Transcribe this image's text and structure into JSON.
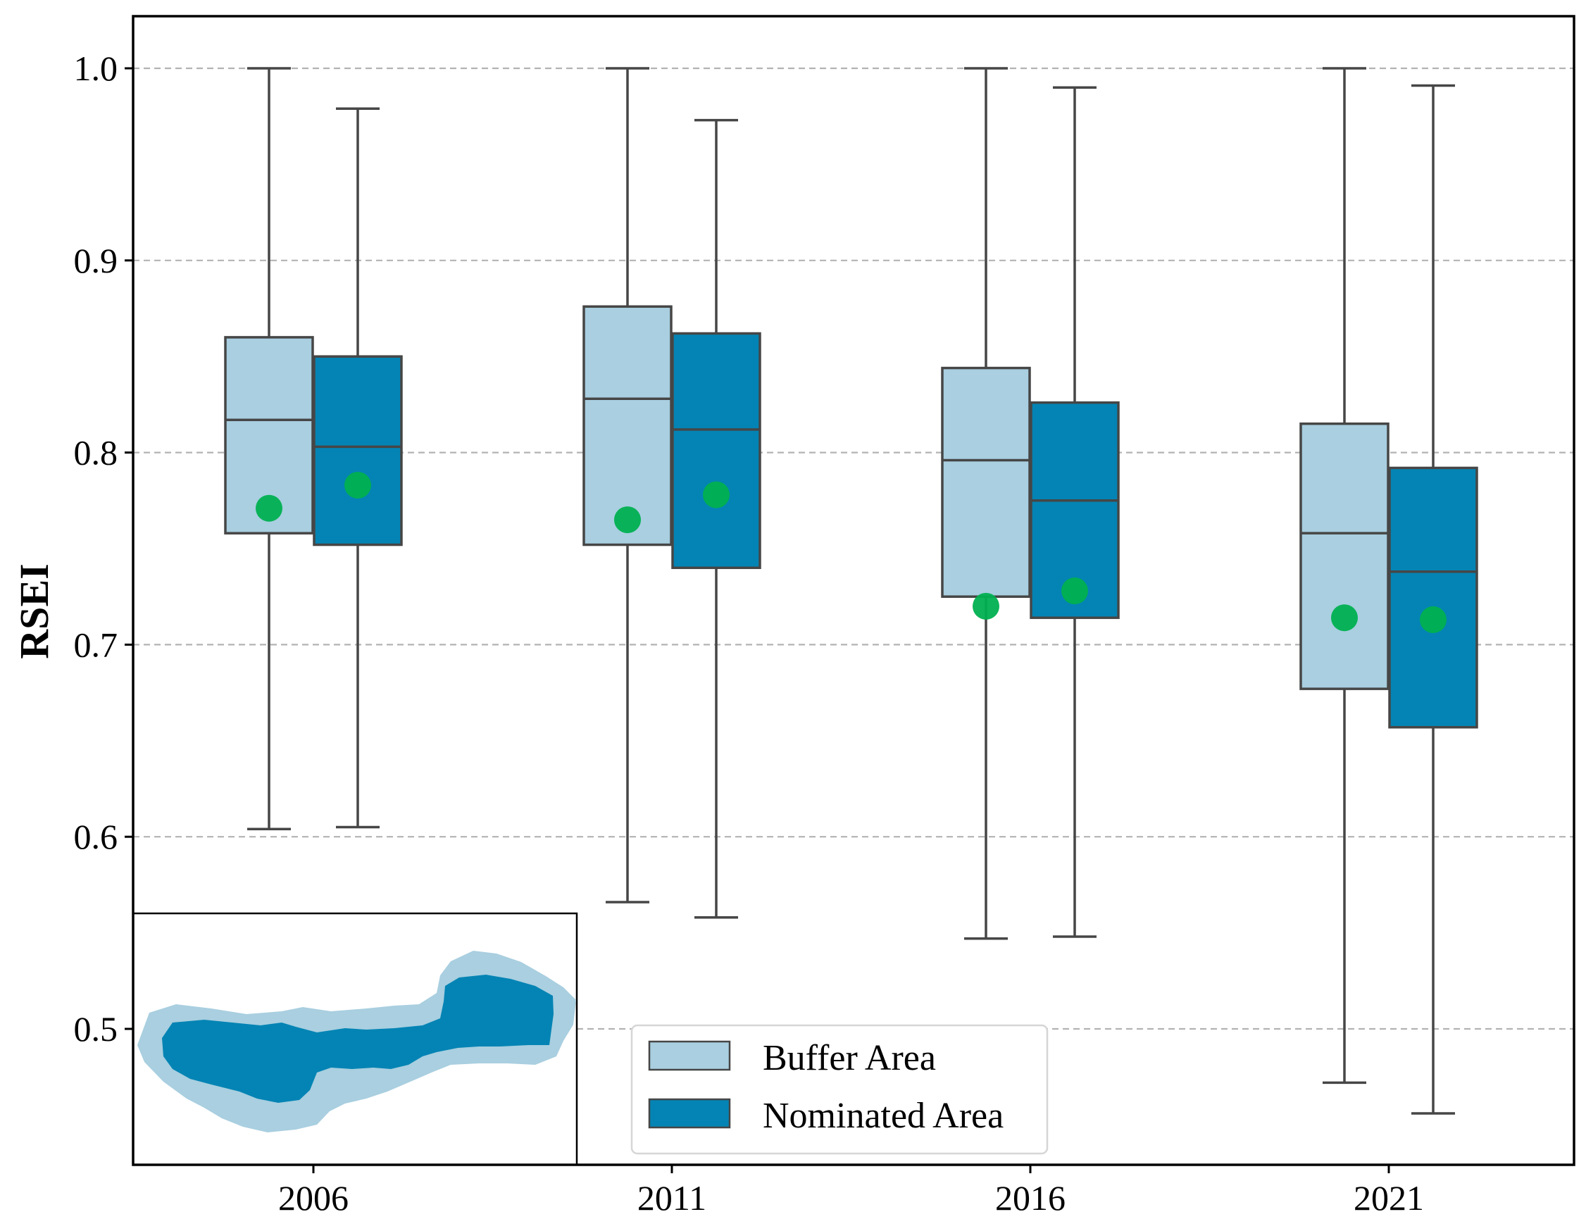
{
  "chart_data": {
    "type": "box",
    "categories": [
      "2006",
      "2011",
      "2016",
      "2021"
    ],
    "ylabel": "RSEI",
    "ylim": [
      0.44,
      1.028
    ],
    "yticks": [
      "0.5",
      "0.6",
      "0.7",
      "0.8",
      "0.9",
      "1.0"
    ],
    "ytick_values": [
      0.5,
      0.6,
      0.7,
      0.8,
      0.9,
      1.0
    ],
    "grid": "horizontal-dashed",
    "legend_position": "bottom-center",
    "series": [
      {
        "name": "Buffer Area",
        "color": "#a9cfe0",
        "boxes": [
          {
            "whisker_low": 0.604,
            "q1": 0.758,
            "median": 0.817,
            "q3": 0.86,
            "whisker_high": 1.0,
            "mean": 0.771
          },
          {
            "whisker_low": 0.566,
            "q1": 0.752,
            "median": 0.828,
            "q3": 0.876,
            "whisker_high": 1.0,
            "mean": 0.765
          },
          {
            "whisker_low": 0.547,
            "q1": 0.725,
            "median": 0.796,
            "q3": 0.844,
            "whisker_high": 1.0,
            "mean": 0.72
          },
          {
            "whisker_low": 0.472,
            "q1": 0.677,
            "median": 0.758,
            "q3": 0.815,
            "whisker_high": 1.0,
            "mean": 0.714
          }
        ]
      },
      {
        "name": "Nominated Area",
        "color": "#0484b4",
        "boxes": [
          {
            "whisker_low": 0.605,
            "q1": 0.752,
            "median": 0.803,
            "q3": 0.85,
            "whisker_high": 0.979,
            "mean": 0.783
          },
          {
            "whisker_low": 0.558,
            "q1": 0.74,
            "median": 0.812,
            "q3": 0.862,
            "whisker_high": 0.973,
            "mean": 0.778
          },
          {
            "whisker_low": 0.548,
            "q1": 0.714,
            "median": 0.775,
            "q3": 0.826,
            "whisker_high": 0.99,
            "mean": 0.728
          },
          {
            "whisker_low": 0.456,
            "q1": 0.657,
            "median": 0.738,
            "q3": 0.792,
            "whisker_high": 0.991,
            "mean": 0.713
          }
        ]
      }
    ],
    "mean_marker_color": "#00b050",
    "box_edge_color": "#464646",
    "inset_map": {
      "outer_color": "#a9cfe0",
      "inner_color": "#0484b4"
    }
  }
}
